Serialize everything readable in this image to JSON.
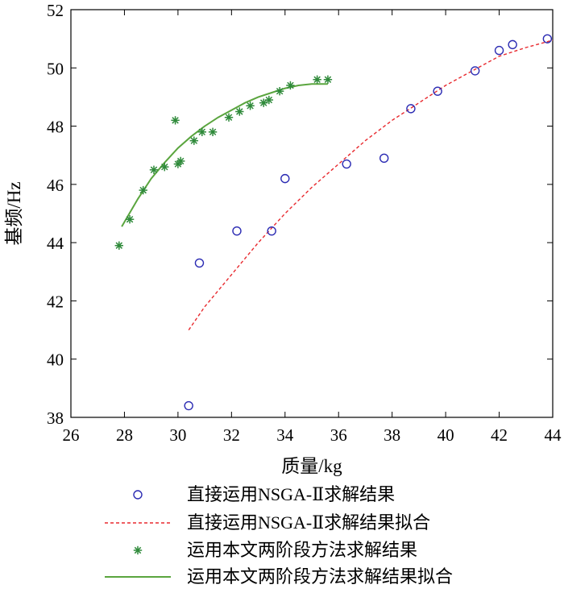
{
  "chart_data": {
    "type": "scatter",
    "xlabel": "质量/kg",
    "ylabel": "基频/Hz",
    "xlim": [
      26,
      44
    ],
    "ylim": [
      38,
      52
    ],
    "xticks": [
      26,
      28,
      30,
      32,
      34,
      36,
      38,
      40,
      42,
      44
    ],
    "yticks": [
      38,
      40,
      42,
      44,
      46,
      48,
      50,
      52
    ],
    "grid": false,
    "legend_position": "bottom",
    "series": [
      {
        "name": "直接运用NSGA-Ⅱ求解结果",
        "kind": "scatter",
        "marker": "circle",
        "color": "#2b2bb3",
        "x": [
          30.4,
          30.8,
          32.2,
          33.5,
          34.0,
          36.3,
          37.7,
          38.7,
          39.7,
          41.1,
          42.0,
          42.5,
          43.8
        ],
        "y": [
          38.4,
          43.3,
          44.4,
          44.4,
          46.2,
          46.7,
          46.9,
          48.6,
          49.2,
          49.9,
          50.6,
          50.8,
          51.0
        ]
      },
      {
        "name": "直接运用NSGA-Ⅱ求解结果拟合",
        "kind": "line",
        "style": "dashed",
        "color": "#e8292e",
        "x": [
          30.4,
          31.0,
          32.0,
          33.0,
          34.0,
          35.0,
          36.0,
          37.0,
          38.0,
          39.0,
          40.0,
          41.0,
          42.0,
          43.0,
          44.0
        ],
        "y": [
          41.0,
          41.8,
          42.9,
          44.0,
          45.0,
          45.9,
          46.7,
          47.5,
          48.2,
          48.8,
          49.4,
          49.9,
          50.4,
          50.7,
          50.95
        ]
      },
      {
        "name": "运用本文两阶段方法求解结果",
        "kind": "scatter",
        "marker": "star",
        "color": "#2f8a3a",
        "x": [
          27.8,
          28.2,
          28.7,
          29.1,
          29.5,
          29.9,
          30.0,
          30.1,
          30.6,
          30.9,
          31.3,
          31.9,
          32.3,
          32.7,
          33.2,
          33.4,
          33.8,
          34.2,
          35.2,
          35.6
        ],
        "y": [
          43.9,
          44.8,
          45.8,
          46.5,
          46.6,
          48.2,
          46.7,
          46.8,
          47.5,
          47.8,
          47.8,
          48.3,
          48.5,
          48.7,
          48.8,
          48.9,
          49.2,
          49.4,
          49.6,
          49.6
        ]
      },
      {
        "name": "运用本文两阶段方法求解结果拟合",
        "kind": "line",
        "style": "solid",
        "color": "#5aa53e",
        "x": [
          27.9,
          28.5,
          29.0,
          29.5,
          30.0,
          30.5,
          31.0,
          31.5,
          32.0,
          32.5,
          33.0,
          33.5,
          34.0,
          34.5,
          35.0,
          35.6
        ],
        "y": [
          44.55,
          45.5,
          46.2,
          46.75,
          47.25,
          47.65,
          48.0,
          48.3,
          48.55,
          48.8,
          49.0,
          49.15,
          49.3,
          49.4,
          49.45,
          49.45
        ]
      }
    ]
  }
}
